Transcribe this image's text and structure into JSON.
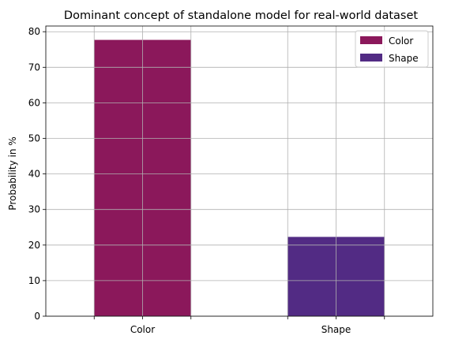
{
  "chart_data": {
    "type": "bar",
    "title": "Dominant concept of standalone model for real-world dataset",
    "xlabel": "",
    "ylabel": "Probability in %",
    "categories": [
      "Color",
      "Shape"
    ],
    "series": [
      {
        "name": "Color",
        "color": "#8b185b",
        "values": [
          77.7,
          null
        ]
      },
      {
        "name": "Shape",
        "color": "#522b84",
        "values": [
          null,
          22.3
        ]
      }
    ],
    "ylim": [
      0,
      81.6
    ],
    "yticks": [
      0,
      10,
      20,
      30,
      40,
      50,
      60,
      70,
      80
    ],
    "grid": true,
    "legend_position": "top-right"
  }
}
